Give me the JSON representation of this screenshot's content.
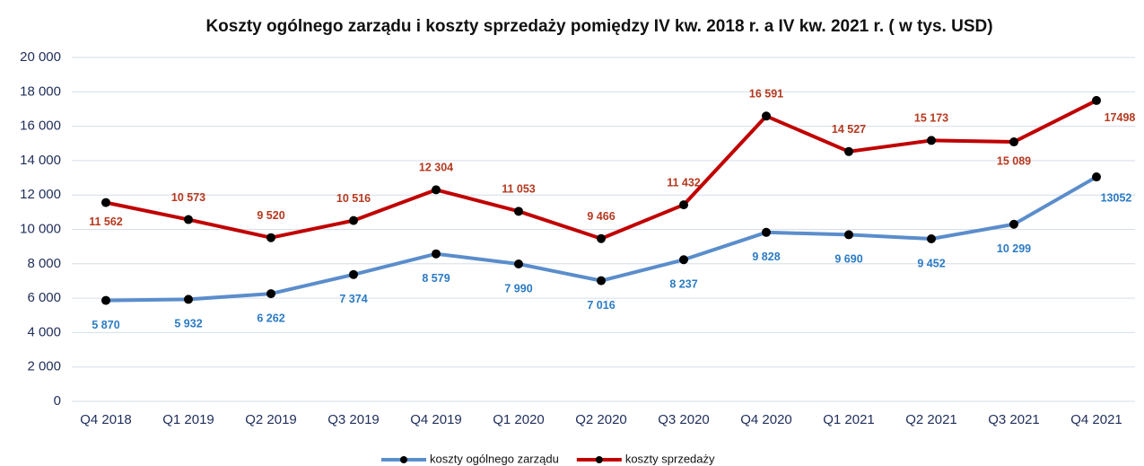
{
  "chart_data": {
    "type": "line",
    "title": "Koszty ogólnego zarządu i koszty sprzedaży pomiędzy IV kw. 2018 r. a IV kw. 2021 r. ( w tys. USD)",
    "categories": [
      "Q4 2018",
      "Q1 2019",
      "Q2 2019",
      "Q3 2019",
      "Q4 2019",
      "Q1 2020",
      "Q2 2020",
      "Q3 2020",
      "Q4 2020",
      "Q1 2021",
      "Q2 2021",
      "Q3 2021",
      "Q4 2021"
    ],
    "series": [
      {
        "name": "koszty ogólnego zarządu",
        "color": "#5b8dcb",
        "label_color": "#2b7bc4",
        "values": [
          5870,
          5932,
          6262,
          7374,
          8579,
          7990,
          7016,
          8237,
          9828,
          9690,
          9452,
          10299,
          13052
        ],
        "value_labels": [
          "5 870",
          "5 932",
          "6 262",
          "7 374",
          "8 579",
          "7 990",
          "7 016",
          "8 237",
          "9 828",
          "9 690",
          "9 452",
          "10 299",
          "13052"
        ]
      },
      {
        "name": "koszty sprzedaży",
        "color": "#c00000",
        "label_color": "#b5391f",
        "values": [
          11562,
          10573,
          9520,
          10516,
          12304,
          11053,
          9466,
          11432,
          16591,
          14527,
          15173,
          15089,
          17498
        ],
        "value_labels": [
          "11 562",
          "10 573",
          "9 520",
          "10 516",
          "12 304",
          "11 053",
          "9 466",
          "11 432",
          "16 591",
          "14 527",
          "15 173",
          "15 089",
          "17498"
        ]
      }
    ],
    "ylim": [
      0,
      20000
    ],
    "yticks": [
      0,
      {
        "value": 2000,
        "label": "2 000"
      },
      {
        "value": 4000,
        "label": "4 000"
      },
      {
        "value": 6000,
        "label": "6 000"
      },
      {
        "value": 8000,
        "label": "8 000"
      },
      {
        "value": 10000,
        "label": "10 000"
      },
      {
        "value": 12000,
        "label": "12 000"
      },
      {
        "value": 14000,
        "label": "14 000"
      },
      {
        "value": 16000,
        "label": "16 000"
      },
      {
        "value": 18000,
        "label": "18 000"
      },
      {
        "value": 20000,
        "label": "20 000"
      }
    ],
    "grid": true,
    "legend": "bottom"
  }
}
